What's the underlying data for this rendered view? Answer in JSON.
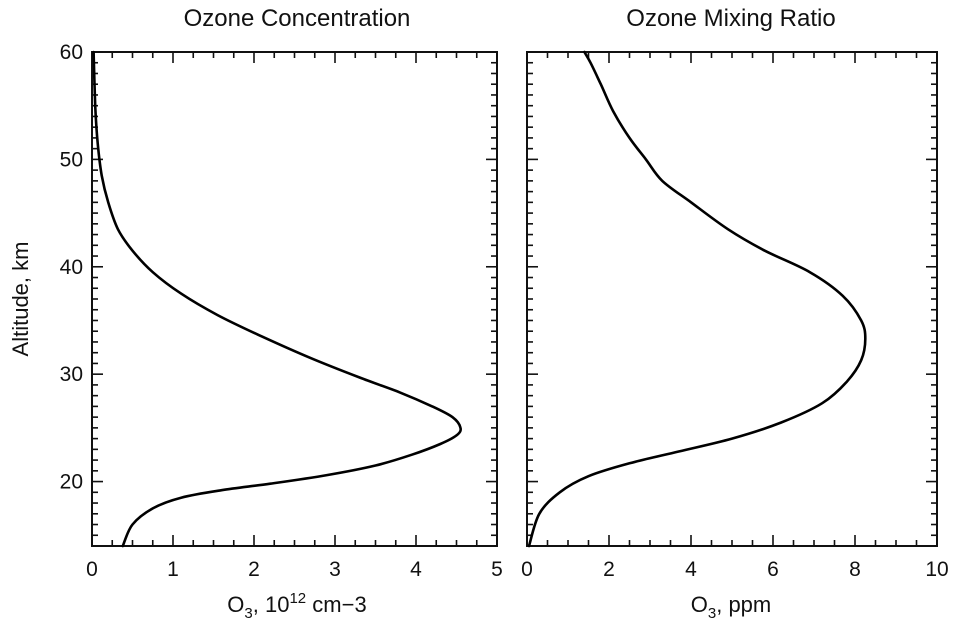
{
  "chart_data": [
    {
      "type": "line",
      "title": "Ozone Concentration",
      "xlabel": {
        "base": "O",
        "sub": "3",
        "rest": ", 10",
        "sup": "12",
        "tail": " cm−3"
      },
      "ylabel": "Altitude, km",
      "xlim": [
        0,
        5
      ],
      "ylim": [
        14,
        60
      ],
      "xticks": [
        0,
        1,
        2,
        3,
        4,
        5
      ],
      "yticks": [
        20,
        30,
        40,
        50,
        60
      ],
      "series": [
        {
          "x": [
            0.38,
            0.5,
            0.75,
            1.1,
            1.6,
            2.2,
            2.9,
            3.5,
            3.95,
            4.3,
            4.5,
            4.55,
            4.45,
            4.2,
            3.8,
            3.3,
            2.7,
            2.1,
            1.55,
            1.1,
            0.75,
            0.5,
            0.32,
            0.2,
            0.12,
            0.07,
            0.04,
            0.02
          ],
          "y": [
            14,
            16,
            17.5,
            18.5,
            19.2,
            19.8,
            20.6,
            21.5,
            22.5,
            23.5,
            24.3,
            25,
            26,
            27,
            28.3,
            29.7,
            31.5,
            33.5,
            35.5,
            37.5,
            39.5,
            41.5,
            43.5,
            46,
            48.5,
            51.5,
            55,
            60
          ]
        }
      ]
    },
    {
      "type": "line",
      "title": "Ozone Mixing Ratio",
      "xlabel": {
        "base": "O",
        "sub": "3",
        "rest": ", ppm"
      },
      "xlim": [
        0,
        10
      ],
      "ylim": [
        14,
        60
      ],
      "xticks": [
        0,
        2,
        4,
        6,
        8,
        10
      ],
      "series": [
        {
          "x": [
            0.05,
            0.3,
            0.8,
            1.5,
            2.5,
            3.7,
            5.0,
            6.2,
            7.2,
            7.8,
            8.15,
            8.25,
            8.15,
            7.7,
            6.9,
            5.8,
            4.9,
            4.0,
            3.3,
            2.9,
            2.5,
            2.1,
            1.8,
            1.55,
            1.4
          ],
          "y": [
            14,
            17,
            19,
            20.5,
            21.7,
            22.8,
            24,
            25.5,
            27.3,
            29.3,
            31.3,
            33.3,
            35,
            37.3,
            39.5,
            41.5,
            43.5,
            46,
            48,
            50,
            52,
            54.5,
            57,
            59,
            60
          ]
        }
      ]
    }
  ]
}
